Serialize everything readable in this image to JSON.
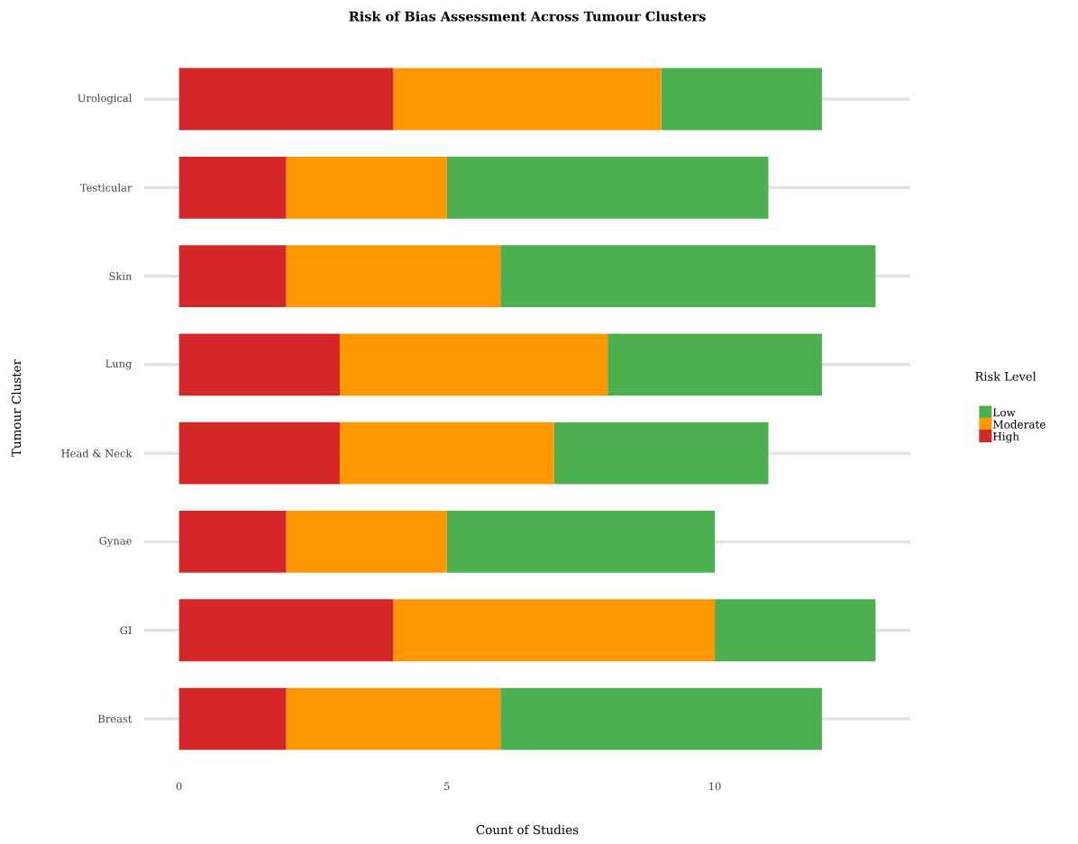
{
  "chart_data": {
    "type": "bar",
    "orientation": "horizontal",
    "stacked": true,
    "title": "Risk of Bias Assessment Across Tumour Clusters",
    "xlabel": "Count of Studies",
    "ylabel": "Tumour Cluster",
    "legend_title": "Risk Level",
    "categories": [
      "Urological",
      "Testicular",
      "Skin",
      "Lung",
      "Head & Neck",
      "Gynae",
      "GI",
      "Breast"
    ],
    "series": [
      {
        "name": "High",
        "color": "#d62728",
        "values": [
          4,
          2,
          2,
          3,
          3,
          2,
          4,
          2
        ]
      },
      {
        "name": "Moderate",
        "color": "#ff9800",
        "values": [
          5,
          3,
          4,
          5,
          4,
          3,
          6,
          4
        ]
      },
      {
        "name": "Low",
        "color": "#4caf50",
        "values": [
          3,
          6,
          7,
          4,
          4,
          5,
          3,
          6
        ]
      }
    ],
    "xlim": [
      -0.65,
      13.65
    ],
    "xticks": [
      0,
      5,
      10
    ],
    "grid": "y",
    "legend": "right"
  }
}
